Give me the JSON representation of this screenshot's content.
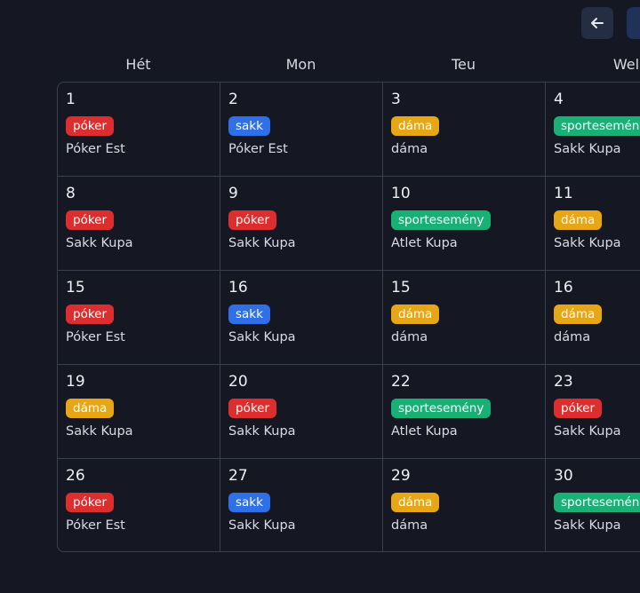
{
  "colors": {
    "poker": "#dc2e2e",
    "sakk": "#2f70e8",
    "dama": "#e6a616",
    "sport": "#18b074"
  },
  "toolbar": {
    "prev_icon": "arrow-left-icon"
  },
  "weekdays": [
    "Hét",
    "Mon",
    "Teu",
    "Wel"
  ],
  "weeks": [
    [
      {
        "day": "1",
        "tag": "póker",
        "cat": "poker",
        "title": "Póker Est"
      },
      {
        "day": "2",
        "tag": "sakk",
        "cat": "sakk",
        "title": "Póker Est"
      },
      {
        "day": "3",
        "tag": "dáma",
        "cat": "dama",
        "title": "dáma"
      },
      {
        "day": "4",
        "tag": "sportesemény",
        "cat": "sport",
        "title": "Sakk Kupa"
      }
    ],
    [
      {
        "day": "8",
        "tag": "póker",
        "cat": "poker",
        "title": "Sakk Kupa"
      },
      {
        "day": "9",
        "tag": "póker",
        "cat": "poker",
        "title": "Sakk Kupa"
      },
      {
        "day": "10",
        "tag": "sportesemény",
        "cat": "sport",
        "title": "Atlet Kupa"
      },
      {
        "day": "11",
        "tag": "dáma",
        "cat": "dama",
        "title": "Sakk Kupa"
      }
    ],
    [
      {
        "day": "15",
        "tag": "póker",
        "cat": "poker",
        "title": "Póker Est"
      },
      {
        "day": "16",
        "tag": "sakk",
        "cat": "sakk",
        "title": "Sakk Kupa"
      },
      {
        "day": "15",
        "tag": "dáma",
        "cat": "dama",
        "title": "dáma"
      },
      {
        "day": "16",
        "tag": "dáma",
        "cat": "dama",
        "title": "dáma"
      }
    ],
    [
      {
        "day": "19",
        "tag": "dáma",
        "cat": "dama",
        "title": "Sakk Kupa"
      },
      {
        "day": "20",
        "tag": "póker",
        "cat": "poker",
        "title": "Sakk Kupa"
      },
      {
        "day": "22",
        "tag": "sportesemény",
        "cat": "sport",
        "title": "Atlet Kupa"
      },
      {
        "day": "23",
        "tag": "póker",
        "cat": "poker",
        "title": "Sakk Kupa"
      }
    ],
    [
      {
        "day": "26",
        "tag": "póker",
        "cat": "poker",
        "title": "Póker Est"
      },
      {
        "day": "27",
        "tag": "sakk",
        "cat": "sakk",
        "title": "Sakk Kupa"
      },
      {
        "day": "29",
        "tag": "dáma",
        "cat": "dama",
        "title": "dáma"
      },
      {
        "day": "30",
        "tag": "sportesemény",
        "cat": "sport",
        "title": "Sakk Kupa"
      }
    ]
  ]
}
